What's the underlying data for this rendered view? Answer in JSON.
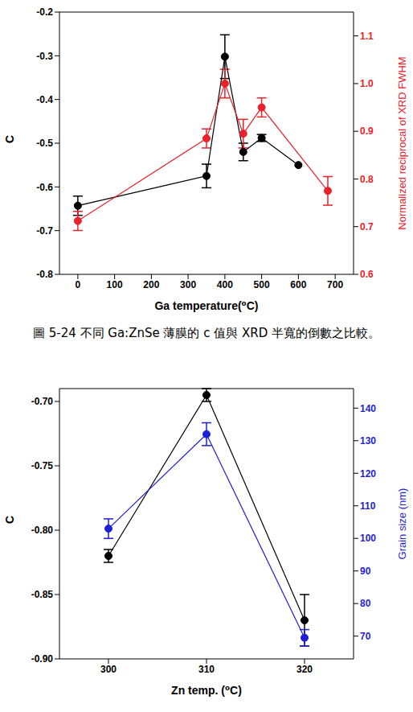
{
  "chart_data": [
    {
      "type": "line",
      "xlabel": "Ga temperature(⁰C)",
      "ylabel": "C",
      "y2label": "Normalized reciprocal of XRD FWHM",
      "xlim": [
        -50,
        750
      ],
      "xticks": [
        0,
        100,
        200,
        300,
        400,
        500,
        600,
        700
      ],
      "ylim": [
        -0.8,
        -0.2
      ],
      "yticks": [
        -0.8,
        -0.7,
        -0.6,
        -0.5,
        -0.4,
        -0.3,
        -0.2
      ],
      "y2lim": [
        0.6,
        1.15
      ],
      "y2ticks": [
        0.6,
        0.7,
        0.8,
        0.9,
        {
          "value": 1,
          "label": "1.0"
        },
        1.1
      ],
      "series": [
        {
          "color": "#000000",
          "marker": "circle",
          "axis": "y",
          "x": [
            0,
            350,
            400,
            450,
            500,
            600
          ],
          "values": [
            -0.643,
            -0.575,
            -0.302,
            -0.52,
            -0.488,
            -0.55
          ],
          "errors": [
            0.022,
            0.027,
            0.05,
            0.02,
            0.008,
            0
          ]
        },
        {
          "color": "#e8212a",
          "marker": "circle",
          "axis": "y2",
          "x": [
            0,
            350,
            400,
            450,
            500,
            680
          ],
          "values": [
            0.712,
            0.885,
            1.0,
            0.895,
            0.95,
            0.775
          ],
          "errors": [
            0.02,
            0.02,
            0.03,
            0.03,
            0.02,
            0.03
          ]
        }
      ]
    },
    {
      "type": "line",
      "xlabel": "Zn temp. (⁰C)",
      "ylabel": "C",
      "y2label": "Grain size (nm)",
      "xlim": [
        295,
        325
      ],
      "xticks": [
        300,
        310,
        320
      ],
      "ylim": [
        -0.9,
        -0.69
      ],
      "yticks": [
        {
          "value": -0.9,
          "label": "-0.90"
        },
        {
          "value": -0.85,
          "label": "-0.85"
        },
        {
          "value": -0.8,
          "label": "-0.80"
        },
        {
          "value": -0.75,
          "label": "-0.75"
        },
        {
          "value": -0.7,
          "label": "-0.70"
        }
      ],
      "y2lim": [
        63,
        146
      ],
      "y2ticks": [
        70,
        80,
        90,
        100,
        110,
        120,
        130,
        140
      ],
      "series": [
        {
          "color": "#000000",
          "marker": "circle",
          "axis": "y",
          "x": [
            300,
            310,
            320
          ],
          "values": [
            -0.82,
            -0.695,
            -0.87
          ],
          "errors": [
            0.005,
            0.005,
            0.02
          ]
        },
        {
          "color": "#1f1fd6",
          "marker": "circle",
          "axis": "y2",
          "x": [
            300,
            310,
            320
          ],
          "values": [
            103,
            132,
            69.5
          ],
          "errors": [
            3,
            3.5,
            2.5
          ]
        }
      ]
    }
  ],
  "caption": "圖 5-24 不同 Ga:ZnSe 薄膜的 c 值與 XRD 半寬的倒數之比較。"
}
